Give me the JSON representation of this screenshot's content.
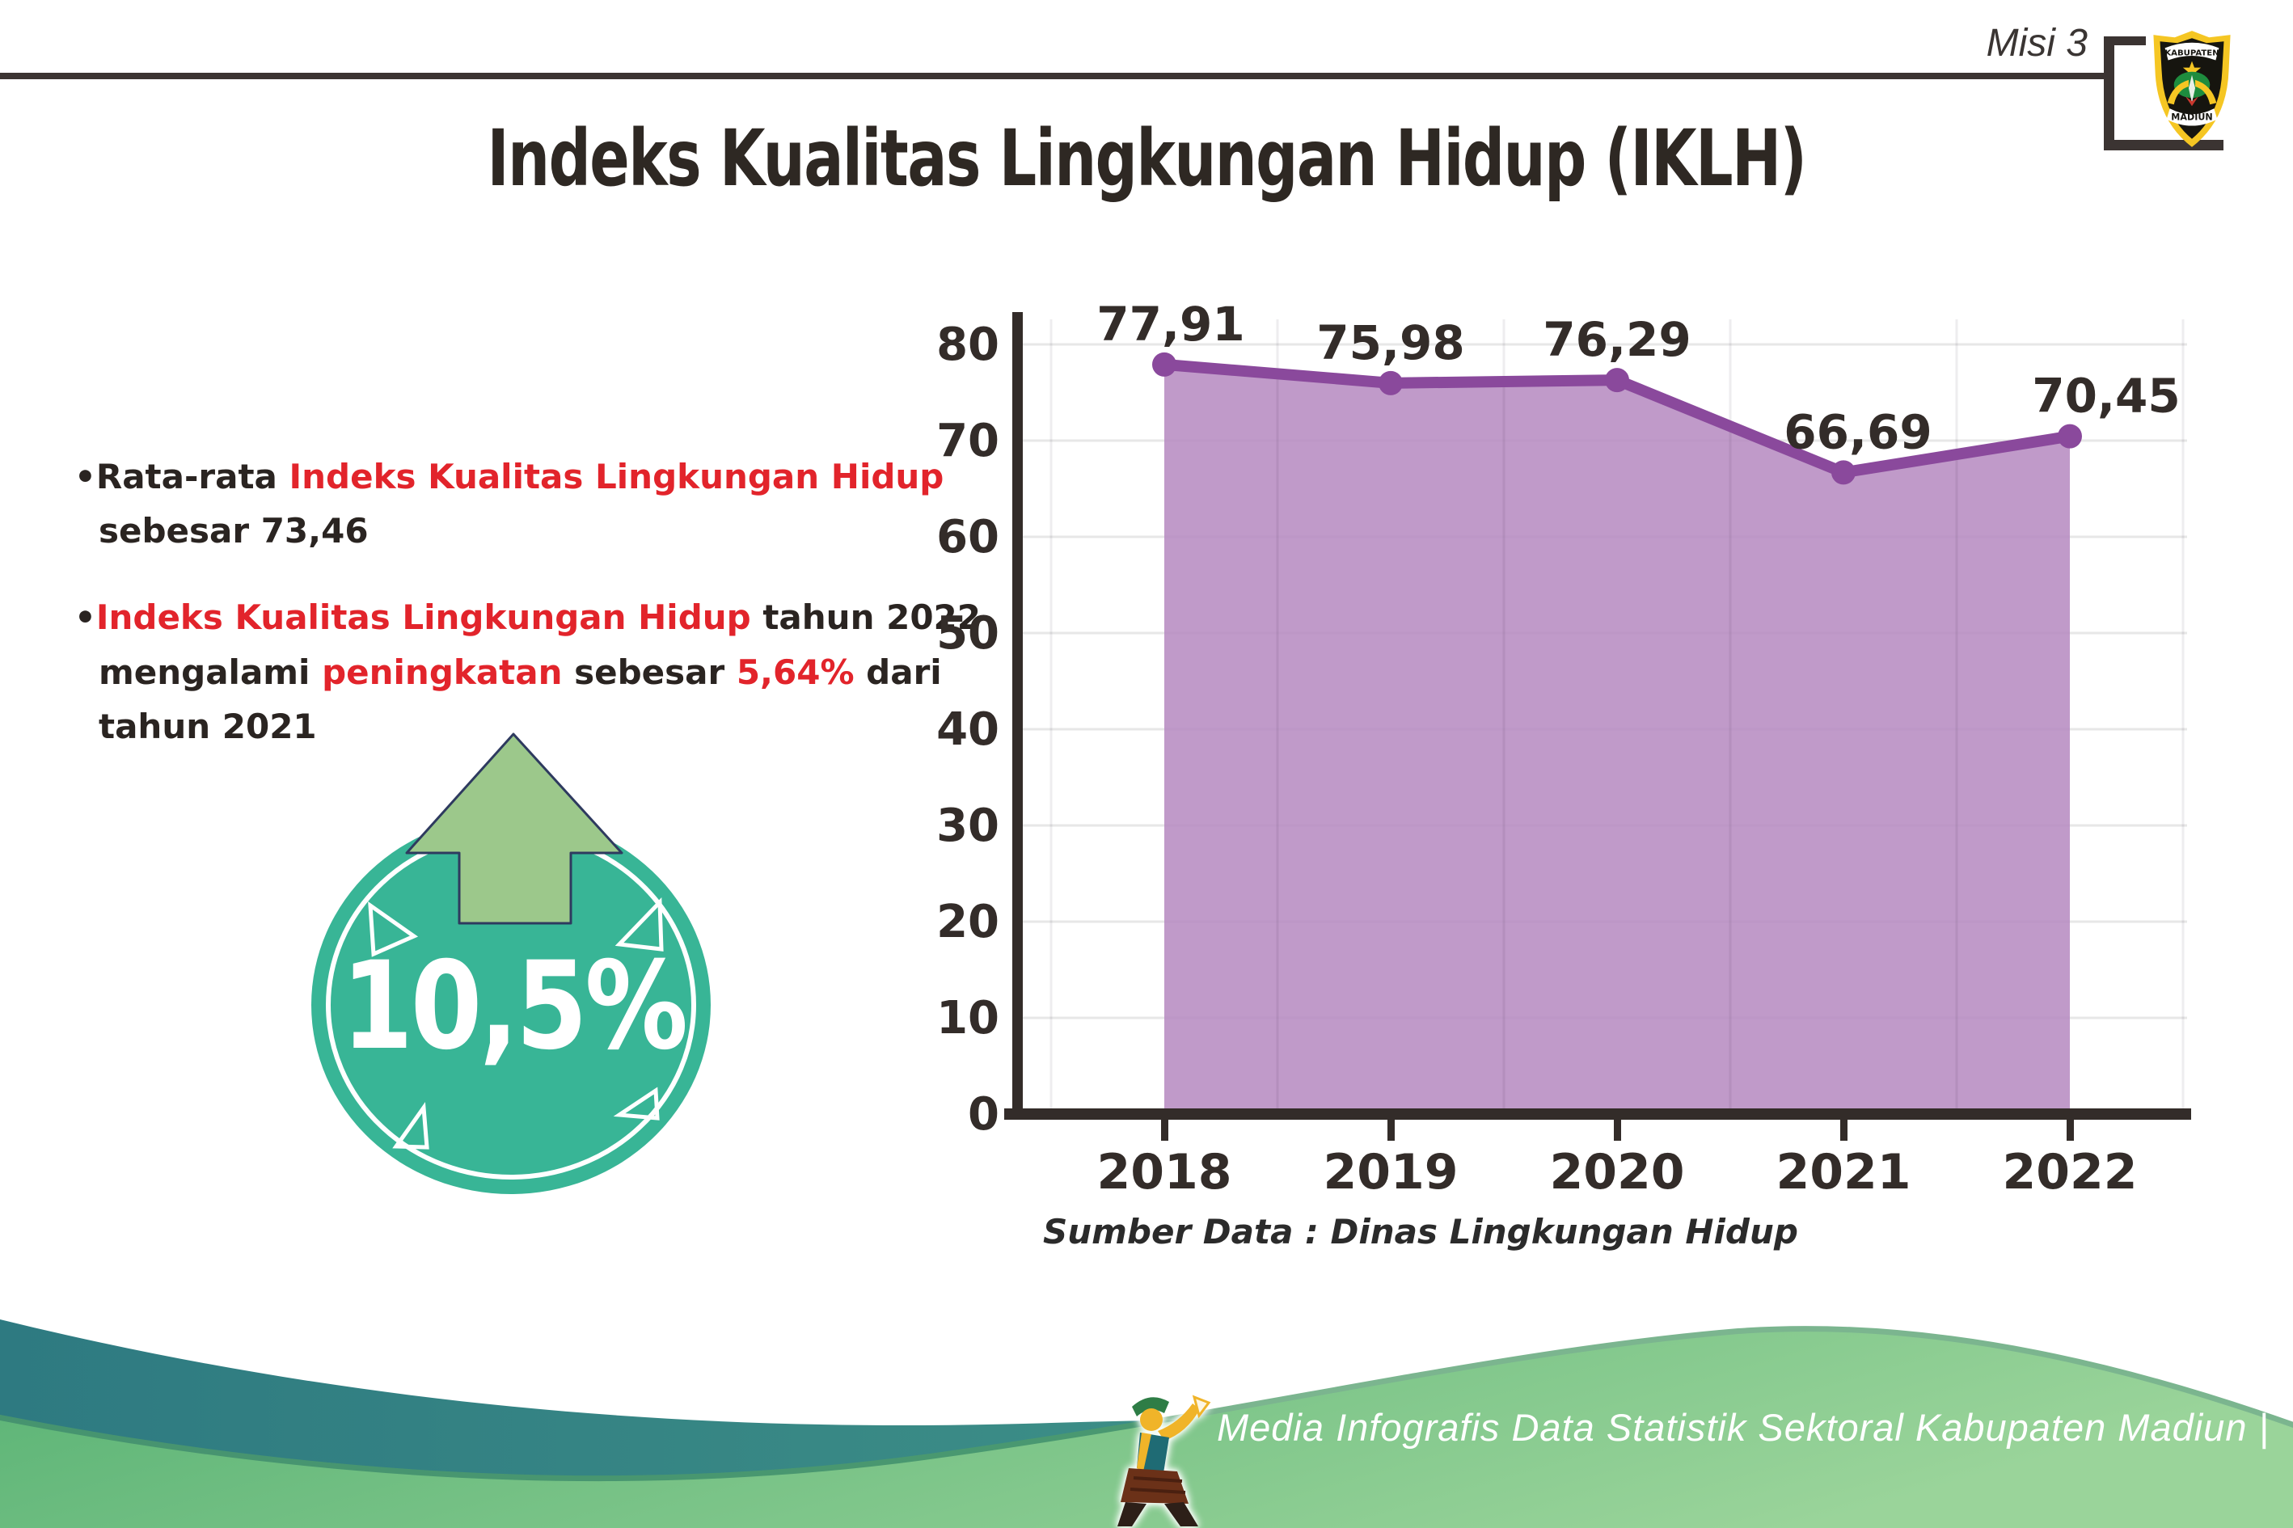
{
  "header": {
    "misi_label": "Misi 3"
  },
  "logo": {
    "name": "kabupaten-madiun-emblem",
    "top_text": "KABUPATEN",
    "bottom_text": "MADIUN"
  },
  "title": "Indeks Kualitas Lingkungan Hidup (IKLH)",
  "bullets": {
    "b1": {
      "bullet": "•",
      "l1_dark": "Rata-rata ",
      "l1_red": "Indeks Kualitas Lingkungan Hidup",
      "l2_dark": "sebesar 73,46"
    },
    "b2": {
      "bullet": "•",
      "l1_red": "Indeks Kualitas Lingkungan Hidup",
      "l1_dark": " tahun 2022",
      "l2_d1": "mengalami ",
      "l2_r1": "peningkatan",
      "l2_d2": " sebesar ",
      "l2_r2": "5,64%",
      "l2_d3": " dari",
      "l3_dark": "tahun 2021"
    }
  },
  "badge": {
    "value": "10,5%",
    "icon": "arrow-up"
  },
  "chart_data": {
    "type": "area",
    "title": "",
    "xlabel": "",
    "ylabel": "",
    "categories": [
      "2018",
      "2019",
      "2020",
      "2021",
      "2022"
    ],
    "values": [
      77.91,
      75.98,
      76.29,
      66.69,
      70.45
    ],
    "value_labels": [
      "77,91",
      "75,98",
      "76,29",
      "66,69",
      "70,45"
    ],
    "yticks": [
      "0",
      "10",
      "20",
      "30",
      "40",
      "50",
      "60",
      "70",
      "80"
    ],
    "ylim": [
      0,
      85
    ],
    "grid": true,
    "legend": false,
    "series_name": "IKLH",
    "fill_color": "#b78cc1",
    "line_color": "#8a499c"
  },
  "source_note": "Sumber Data : Dinas Lingkungan Hidup",
  "footer": {
    "caption": "Media Infografis Data Statistik Sektoral Kabupaten Madiun |"
  },
  "colors": {
    "accent_red": "#e2242b",
    "badge_teal": "#38b596",
    "arrow_green": "#9cc88b",
    "chart_fill": "#b78cc1",
    "chart_line": "#8a499c",
    "footer_teal": "#357e84",
    "footer_green": "#62b87b",
    "text_dark": "#2a2421"
  }
}
